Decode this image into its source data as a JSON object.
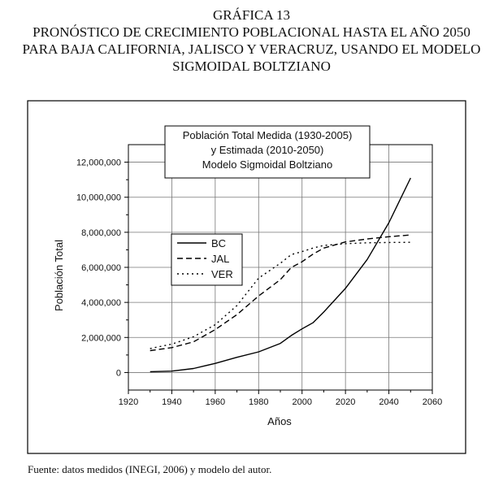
{
  "heading": {
    "label": "GRÁFICA 13",
    "line1": "PRONÓSTICO DE CRECIMIENTO POBLACIONAL HASTA EL AÑO 2050",
    "line2": "PARA BAJA CALIFORNIA, JALISCO Y VERACRUZ, USANDO EL MODELO",
    "line3": "SIGMOIDAL BOLTZIANO"
  },
  "source": "Fuente: datos medidos (INEGI, 2006) y modelo del autor.",
  "chart_data": {
    "type": "line",
    "title_lines": [
      "Población Total Medida (1930-2005)",
      "y Estimada (2010-2050)",
      "Modelo Sigmoidal Boltziano"
    ],
    "xlabel": "Años",
    "ylabel": "Población Total",
    "xlim": [
      1920,
      2060
    ],
    "ylim": [
      -1000000,
      13000000
    ],
    "xticks": [
      "1920",
      "1940",
      "1960",
      "1980",
      "2000",
      "2020",
      "2040",
      "2060"
    ],
    "xtick_values": [
      1920,
      1940,
      1960,
      1980,
      2000,
      2020,
      2040,
      2060
    ],
    "yticks": [
      "0",
      "2,000,000",
      "4,000,000",
      "6,000,000",
      "8,000,000",
      "10,000,000",
      "12,000,000"
    ],
    "ytick_values": [
      0,
      2000000,
      4000000,
      6000000,
      8000000,
      10000000,
      12000000
    ],
    "grid": true,
    "legend_position": "center-left",
    "series": [
      {
        "name": "BC",
        "style": "solid",
        "color": "#000000",
        "x": [
          1930,
          1940,
          1950,
          1960,
          1970,
          1980,
          1990,
          1995,
          2000,
          2005,
          2010,
          2020,
          2030,
          2040,
          2050
        ],
        "y": [
          50000,
          80000,
          230000,
          520000,
          870000,
          1180000,
          1660000,
          2110000,
          2490000,
          2840000,
          3450000,
          4800000,
          6450000,
          8550000,
          11100000
        ]
      },
      {
        "name": "JAL",
        "style": "dashed",
        "color": "#000000",
        "x": [
          1930,
          1940,
          1950,
          1960,
          1970,
          1980,
          1990,
          1995,
          2000,
          2005,
          2010,
          2020,
          2030,
          2040,
          2050
        ],
        "y": [
          1250000,
          1420000,
          1750000,
          2450000,
          3300000,
          4370000,
          5300000,
          5990000,
          6320000,
          6750000,
          7100000,
          7450000,
          7620000,
          7750000,
          7850000
        ]
      },
      {
        "name": "VER",
        "style": "dotted",
        "color": "#000000",
        "x": [
          1930,
          1940,
          1950,
          1960,
          1970,
          1980,
          1990,
          1995,
          2000,
          2005,
          2010,
          2020,
          2030,
          2040,
          2050
        ],
        "y": [
          1370000,
          1620000,
          2040000,
          2730000,
          3820000,
          5390000,
          6230000,
          6730000,
          6900000,
          7100000,
          7250000,
          7350000,
          7400000,
          7420000,
          7430000
        ]
      }
    ]
  }
}
